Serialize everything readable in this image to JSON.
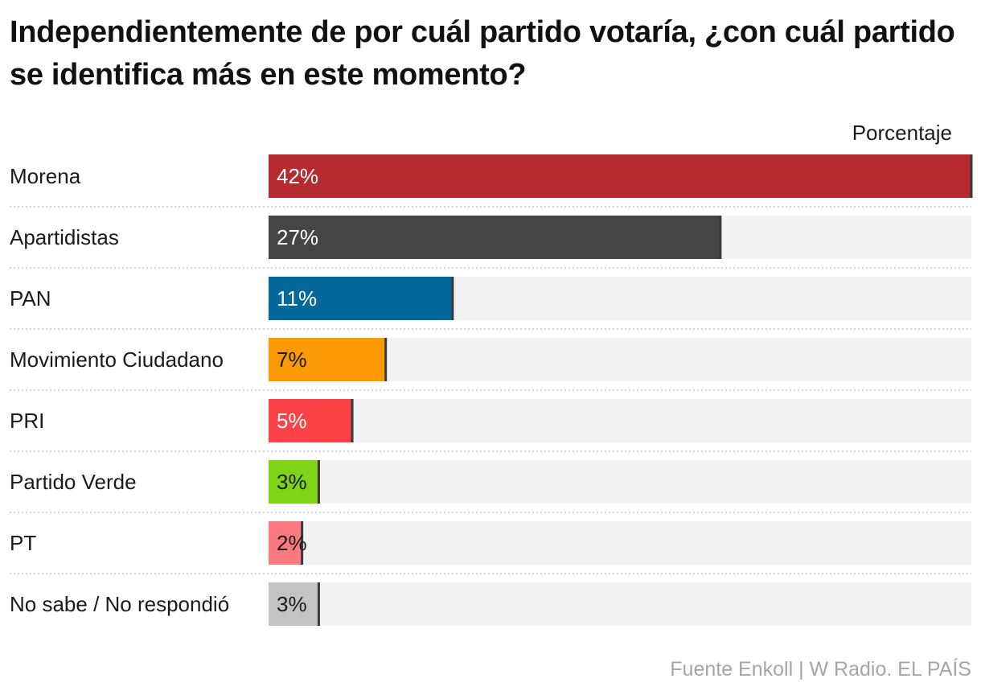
{
  "title": "Independientemente de por cuál partido votaría, ¿con cuál partido se identifica más en este momento?",
  "unit_label": "Porcentaje",
  "source": "Fuente Enkoll | W Radio. EL PAÍS",
  "chart_data": {
    "type": "bar",
    "orientation": "horizontal",
    "title": "Independientemente de por cuál partido votaría, ¿con cuál partido se identifica más en este momento?",
    "unit": "Porcentaje",
    "xlim": [
      0,
      42
    ],
    "grid": false,
    "categories": [
      "Morena",
      "Apartidistas",
      "PAN",
      "Movimiento Ciudadano",
      "PRI",
      "Partido Verde",
      "PT",
      "No sabe / No respondió"
    ],
    "values": [
      42,
      27,
      11,
      7,
      5,
      3,
      2,
      3
    ],
    "labels": [
      "42%",
      "27%",
      "11%",
      "7%",
      "5%",
      "3%",
      "2%",
      "3%"
    ],
    "colors": [
      "#b52b30",
      "#454545",
      "#05689b",
      "#fc9a06",
      "#fb4246",
      "#80d417",
      "#fb7a7f",
      "#c3c3c3"
    ],
    "label_colors": [
      "#ffffff",
      "#ffffff",
      "#ffffff",
      "#1a1a1a",
      "#ffffff",
      "#1a1a1a",
      "#1a1a1a",
      "#1a1a1a"
    ],
    "track_color": "#f2f2f2"
  }
}
